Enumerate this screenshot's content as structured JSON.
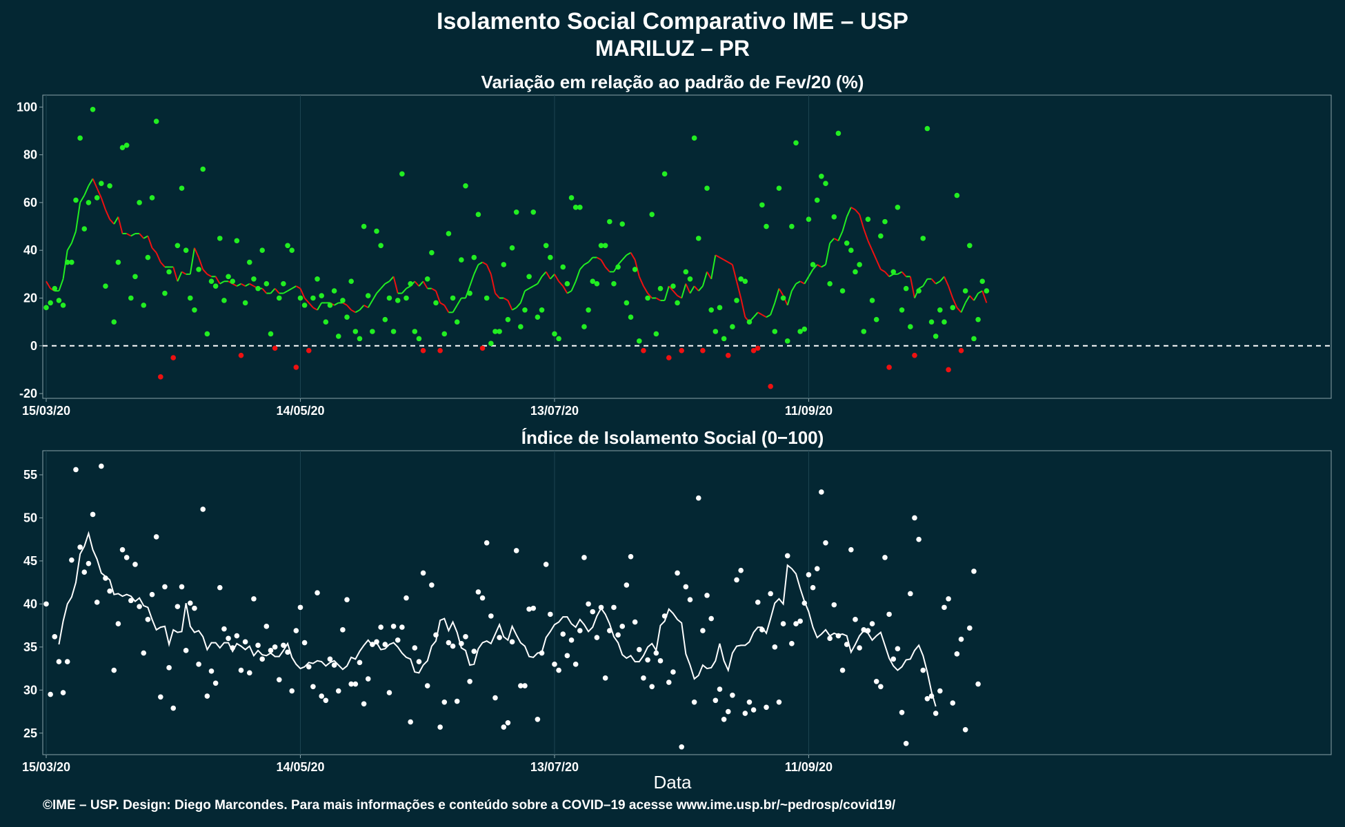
{
  "title": "Isolamento Social Comparativo IME – USP",
  "subtitle": "MARILUZ – PR",
  "footer": "©IME – USP. Design: Diego Marcondes. Para mais informações e conteúdo sobre a COVID–19 acesse www.ime.usp.br/~pedrosp/covid19/",
  "colors": {
    "background": "#042733",
    "green": "#22ee22",
    "red": "#ee1111",
    "white": "#ffffff"
  },
  "chart_data": [
    {
      "type": "scatter",
      "title": "Variação em relação ao padrão de Fev/20 (%)",
      "x_ticks": [
        "15/03/20",
        "14/05/20",
        "13/07/20",
        "11/09/20"
      ],
      "ylim": [
        -22,
        105
      ],
      "y_ticks": [
        -20,
        0,
        20,
        40,
        60,
        80,
        100
      ],
      "x_range_days": [
        0,
        225
      ],
      "reference_line": 0,
      "points": [
        16,
        18,
        24,
        19,
        17,
        35,
        35,
        61,
        87,
        49,
        60,
        99,
        62,
        68,
        25,
        67,
        10,
        35,
        83,
        84,
        20,
        29,
        60,
        17,
        37,
        62,
        94,
        -13,
        22,
        31,
        -5,
        42,
        66,
        40,
        20,
        15,
        32,
        74,
        5,
        27,
        25,
        45,
        19,
        29,
        27,
        44,
        -4,
        18,
        35,
        28,
        24,
        40,
        26,
        5,
        -1,
        20,
        26,
        42,
        40,
        -9,
        20,
        17,
        -2,
        20,
        28,
        21,
        10,
        17,
        23,
        4,
        19,
        12,
        27,
        6,
        3,
        50,
        21,
        6,
        48,
        42,
        11,
        20,
        6,
        19,
        72,
        20,
        26,
        6,
        3,
        -2,
        28,
        39,
        18,
        -2,
        5,
        47,
        20,
        10,
        36,
        67,
        22,
        37,
        55,
        -1,
        20,
        1,
        6,
        6,
        34,
        11,
        41,
        56,
        8,
        15,
        29,
        56,
        12,
        15,
        42,
        37,
        5,
        3,
        33,
        26,
        62,
        58,
        58,
        8,
        15,
        27,
        26,
        42,
        42,
        52,
        26,
        33,
        51,
        18,
        12,
        32,
        2,
        -2,
        20,
        55,
        5,
        24,
        72,
        -5,
        25,
        18,
        -2,
        31,
        28,
        87,
        45,
        -2,
        66,
        15,
        6,
        16,
        3,
        -4,
        8,
        19,
        28,
        27,
        10,
        -2,
        -1,
        59,
        50,
        -17,
        6,
        66,
        20,
        2,
        50,
        85,
        6,
        7,
        53,
        34,
        61,
        71,
        68,
        26,
        54,
        89,
        23,
        43,
        40,
        31,
        34,
        6,
        53,
        19,
        11,
        46,
        52,
        -9,
        31,
        58,
        15,
        24,
        8,
        -4,
        23,
        45,
        91,
        10,
        4,
        15,
        10,
        -10,
        16,
        63,
        -2,
        23,
        42,
        3,
        11,
        27,
        23
      ],
      "moving_average": [
        27,
        24,
        23,
        23,
        28,
        40,
        43,
        48,
        60,
        63,
        67,
        70,
        66,
        62,
        57,
        53,
        51,
        54,
        47,
        47,
        46,
        47,
        47,
        45,
        46,
        41,
        39,
        35,
        33,
        33,
        33,
        27,
        31,
        30,
        30,
        41,
        37,
        32,
        30,
        29,
        29,
        26,
        27,
        27,
        26,
        25,
        26,
        25,
        26,
        25,
        24,
        24,
        22,
        22,
        24,
        22,
        22,
        23,
        24,
        25,
        24,
        20,
        18,
        16,
        15,
        18,
        18,
        18,
        17,
        18,
        18,
        17,
        15,
        14,
        15,
        17,
        16,
        19,
        22,
        24,
        26,
        27,
        29,
        22,
        22,
        24,
        25,
        27,
        25,
        27,
        24,
        24,
        23,
        18,
        17,
        14,
        14,
        17,
        20,
        20,
        25,
        30,
        34,
        35,
        34,
        30,
        22,
        20,
        20,
        19,
        15,
        16,
        18,
        23,
        24,
        25,
        26,
        29,
        31,
        28,
        30,
        27,
        25,
        22,
        23,
        27,
        32,
        34,
        35,
        37,
        37,
        36,
        33,
        31,
        31,
        34,
        36,
        38,
        39,
        36,
        29,
        25,
        22,
        20,
        20,
        19,
        19,
        25,
        23,
        21,
        20,
        26,
        22,
        25,
        23,
        25,
        31,
        28,
        38,
        37,
        36,
        35,
        34,
        27,
        20,
        12,
        10,
        12,
        14,
        13,
        12,
        13,
        18,
        24,
        21,
        17,
        23,
        26,
        27,
        26,
        29,
        32,
        34,
        33,
        34,
        43,
        45,
        44,
        48,
        54,
        58,
        57,
        55,
        49,
        44,
        40,
        36,
        32,
        31,
        29,
        30,
        30,
        31,
        29,
        29,
        20,
        24,
        25,
        28,
        28,
        26,
        27,
        29,
        25,
        20,
        16,
        14,
        18,
        21,
        19,
        22,
        23,
        18
      ],
      "series": [
        {
          "name": "",
          "color": "#22ee22"
        },
        {
          "name": "",
          "color": "#ee1111"
        }
      ]
    },
    {
      "type": "scatter",
      "title": "Índice de Isolamento Social (0−100)",
      "xlabel": "Data",
      "x_ticks": [
        "15/03/20",
        "14/05/20",
        "13/07/20",
        "11/09/20"
      ],
      "ylim": [
        22.5,
        57.8
      ],
      "y_ticks": [
        25,
        30,
        35,
        40,
        45,
        50,
        55
      ],
      "x_range_days": [
        0,
        225
      ],
      "points": [
        40,
        29.5,
        36.2,
        33.3,
        29.7,
        33.3,
        45.1,
        55.6,
        46.6,
        43.7,
        44.7,
        50.4,
        40.2,
        56,
        43,
        41.5,
        32.3,
        37.7,
        46.3,
        45.4,
        40.4,
        44.6,
        39.7,
        34.3,
        38.2,
        41.1,
        47.8,
        29.2,
        42,
        32.6,
        27.9,
        39.7,
        42,
        34.6,
        40.1,
        39.5,
        33,
        51,
        29.3,
        32.2,
        30.8,
        41.9,
        37.1,
        36,
        34.9,
        36.3,
        32.3,
        35.6,
        32,
        40.6,
        35.2,
        33.6,
        37.4,
        34.6,
        35,
        31.2,
        35.2,
        34.4,
        29.9,
        36.9,
        39.6,
        35.5,
        32.7,
        30.4,
        41.3,
        29.3,
        28.8,
        33.6,
        32.9,
        29.9,
        37,
        40.5,
        30.7,
        30.7,
        33.2,
        28.4,
        31.3,
        35.3,
        35.6,
        37.3,
        35.3,
        29.7,
        37.4,
        35.8,
        37.3,
        40.7,
        26.3,
        34.9,
        33.3,
        43.6,
        30.5,
        42.2,
        36.4,
        25.7,
        28.6,
        35.5,
        35.1,
        28.7,
        35.4,
        36.2,
        31,
        34.5,
        41.4,
        40.7,
        47.1,
        38.6,
        29.1,
        36.1,
        25.7,
        26.2,
        35.6,
        46.2,
        30.5,
        30.5,
        39.4,
        39.5,
        26.6,
        34.3,
        44.6,
        38.8,
        33,
        32.3,
        36.5,
        34,
        35.8,
        33,
        36.9,
        45.4,
        40,
        39.1,
        36.1,
        39.6,
        31.4,
        36.9,
        39.6,
        36.4,
        37.4,
        42.2,
        45.5,
        37.9,
        34.7,
        31.4,
        33.5,
        30.4,
        34.3,
        33.4,
        38.6,
        30.9,
        32.1,
        43.6,
        23.4,
        42,
        40.5,
        28.6,
        52.3,
        36.9,
        41,
        38.3,
        28.8,
        30.1,
        26.6,
        27.5,
        29.4,
        42.8,
        43.9,
        27.3,
        28.6,
        27.7,
        40.2,
        37,
        28,
        41.2,
        35,
        28.6,
        37.7,
        45.6,
        35.4,
        37.7,
        38,
        40.1,
        43.4,
        41.9,
        44.1,
        53,
        47.1,
        36,
        39.9,
        36.3,
        32.3,
        35.3,
        46.3,
        38.2,
        34.9,
        37,
        36.9,
        37.7,
        31,
        30.4,
        45.4,
        38.8,
        33.6,
        34.8,
        27.4,
        23.8,
        41.2,
        50,
        47.5,
        32.3,
        29,
        29.3,
        27.3,
        29.9,
        39.6,
        40.6,
        28.5,
        34.2,
        35.9,
        25.4,
        37.2,
        43.8,
        30.7
      ],
      "moving_average": [
        35.3,
        38,
        40,
        40.8,
        42.5,
        45.8,
        46.7,
        48.2,
        46.3,
        45.2,
        43.6,
        43.2,
        42.8,
        41.1,
        41.2,
        40.9,
        41.1,
        40.9,
        40.3,
        40.7,
        39.8,
        39.6,
        38.2,
        37,
        37.3,
        37.4,
        35.3,
        37,
        36.7,
        36.8,
        40.1,
        37.4,
        36.7,
        36.9,
        36.2,
        34.7,
        35.5,
        35.5,
        34.9,
        35.5,
        35.5,
        34.5,
        35.4,
        35.1,
        34.7,
        35.1,
        34,
        34.6,
        34.1,
        34,
        34.3,
        33.9,
        33.9,
        34.6,
        35.4,
        33.8,
        33,
        32.5,
        32.7,
        33.2,
        33.1,
        33.4,
        33.3,
        32.8,
        33.2,
        33.4,
        32.9,
        32.4,
        32.8,
        33.8,
        33.6,
        34.5,
        35.2,
        35.8,
        35.2,
        35.5,
        34.7,
        34.8,
        35.3,
        35.5,
        35,
        34.3,
        33.8,
        33.6,
        32.1,
        32,
        32.9,
        33.4,
        35.1,
        35.7,
        38.1,
        38.3,
        36.9,
        37.9,
        36.7,
        34.9,
        34.6,
        32.9,
        33,
        34.8,
        35.5,
        35.7,
        35.4,
        36.5,
        37.6,
        36.2,
        35.8,
        37.4,
        36.4,
        35.5,
        35.1,
        33.9,
        33.8,
        34.3,
        34.4,
        36.1,
        36.8,
        37.6,
        37.9,
        38.5,
        38.5,
        37.7,
        37.3,
        38.2,
        37.6,
        36.8,
        37.3,
        38.6,
        39.5,
        38.8,
        37.7,
        36.2,
        35.5,
        34.1,
        33.7,
        34,
        33.3,
        33.3,
        34,
        35,
        35.4,
        34.6,
        37.5,
        38,
        39.4,
        38.9,
        38.2,
        37.8,
        34.2,
        32.9,
        31.3,
        31.7,
        32.9,
        32.5,
        32.6,
        33.4,
        35.4,
        33.4,
        32.3,
        34.3,
        35.1,
        35.2,
        35.2,
        35.6,
        36.7,
        37.3,
        37.3,
        36.6,
        38.3,
        40.1,
        40.6,
        40,
        44.5,
        44.1,
        43.5,
        41.8,
        40.3,
        39.1,
        37.3,
        36.1,
        36.5,
        37,
        36.3,
        36.6,
        36.4,
        36.5,
        36.3,
        34.4,
        35.3,
        36.3,
        36.9,
        36.6,
        35.8,
        36.3,
        36.7,
        35.2,
        33.7,
        32.8,
        32.3,
        32.7,
        33.5,
        33.6,
        34.6,
        35.2,
        34,
        32.1,
        29.8,
        28.1
      ],
      "series": [
        {
          "name": "",
          "color": "#ffffff"
        }
      ]
    }
  ]
}
